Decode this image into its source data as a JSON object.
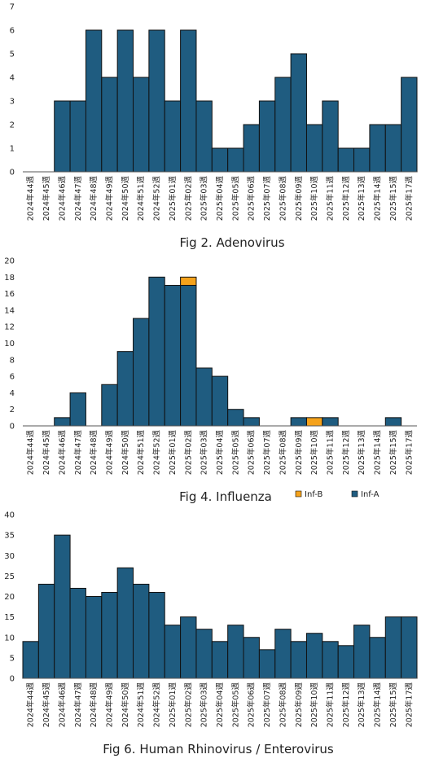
{
  "colors": {
    "inf_a": "#1F5C80",
    "inf_b": "#F5A21B",
    "bar_stroke": "#111111",
    "axis": "#555555"
  },
  "chart_data": [
    {
      "type": "bar",
      "title": "Fig 2. Adenovirus",
      "categories": [
        "2024年44週",
        "2024年45週",
        "2024年46週",
        "2024年47週",
        "2024年48週",
        "2024年49週",
        "2024年50週",
        "2024年51週",
        "2024年52週",
        "2025年01週",
        "2025年02週",
        "2025年03週",
        "2025年04週",
        "2025年05週",
        "2025年06週",
        "2025年07週",
        "2025年08週",
        "2025年09週",
        "2025年10週",
        "2025年11週",
        "2025年12週",
        "2025年13週",
        "2025年14週",
        "2025年15週",
        "2025年17週"
      ],
      "values": [
        0,
        0,
        3,
        3,
        6,
        4,
        6,
        4,
        6,
        3,
        6,
        3,
        1,
        1,
        2,
        3,
        4,
        5,
        2,
        3,
        1,
        1,
        2,
        2,
        4
      ],
      "ylim": [
        0,
        7
      ],
      "yticks": [
        0,
        1,
        2,
        3,
        4,
        5,
        6,
        7
      ],
      "grid": false
    },
    {
      "type": "bar",
      "stacked": true,
      "title": "Fig 4. Influenza",
      "categories": [
        "2024年44週",
        "2024年45週",
        "2024年46週",
        "2024年47週",
        "2024年48週",
        "2024年49週",
        "2024年50週",
        "2024年51週",
        "2024年52週",
        "2025年01週",
        "2025年02週",
        "2025年03週",
        "2025年04週",
        "2025年05週",
        "2025年06週",
        "2025年07週",
        "2025年08週",
        "2025年09週",
        "2025年10週",
        "2025年11週",
        "2025年12週",
        "2025年13週",
        "2025年14週",
        "2025年15週",
        "2025年17週"
      ],
      "series": [
        {
          "name": "Inf-A",
          "values": [
            0,
            0,
            1,
            4,
            0,
            5,
            9,
            13,
            18,
            17,
            17,
            7,
            6,
            2,
            1,
            0,
            0,
            1,
            0,
            1,
            0,
            0,
            0,
            1,
            0
          ]
        },
        {
          "name": "Inf-B",
          "values": [
            0,
            0,
            0,
            0,
            0,
            0,
            0,
            0,
            0,
            0,
            1,
            0,
            0,
            0,
            0,
            0,
            0,
            0,
            1,
            0,
            0,
            0,
            0,
            0,
            0
          ]
        }
      ],
      "legend": [
        "Inf-B",
        "Inf-A"
      ],
      "legend_position": "bottom-right",
      "ylim": [
        0,
        20
      ],
      "yticks": [
        0,
        2,
        4,
        6,
        8,
        10,
        12,
        14,
        16,
        18,
        20
      ],
      "grid": false
    },
    {
      "type": "bar",
      "title": "Fig 6. Human Rhinovirus / Enterovirus",
      "categories": [
        "2024年44週",
        "2024年45週",
        "2024年46週",
        "2024年47週",
        "2024年48週",
        "2024年49週",
        "2024年50週",
        "2024年51週",
        "2024年52週",
        "2025年01週",
        "2025年02週",
        "2025年03週",
        "2025年04週",
        "2025年05週",
        "2025年06週",
        "2025年07週",
        "2025年08週",
        "2025年09週",
        "2025年10週",
        "2025年11週",
        "2025年12週",
        "2025年13週",
        "2025年14週",
        "2025年15週",
        "2025年17週"
      ],
      "values": [
        9,
        23,
        35,
        22,
        20,
        21,
        27,
        23,
        21,
        13,
        15,
        12,
        9,
        13,
        10,
        7,
        12,
        9,
        11,
        9,
        8,
        13,
        10,
        15,
        15
      ],
      "ylim": [
        0,
        40
      ],
      "yticks": [
        0,
        5,
        10,
        15,
        20,
        25,
        30,
        35,
        40
      ],
      "grid": false
    }
  ]
}
